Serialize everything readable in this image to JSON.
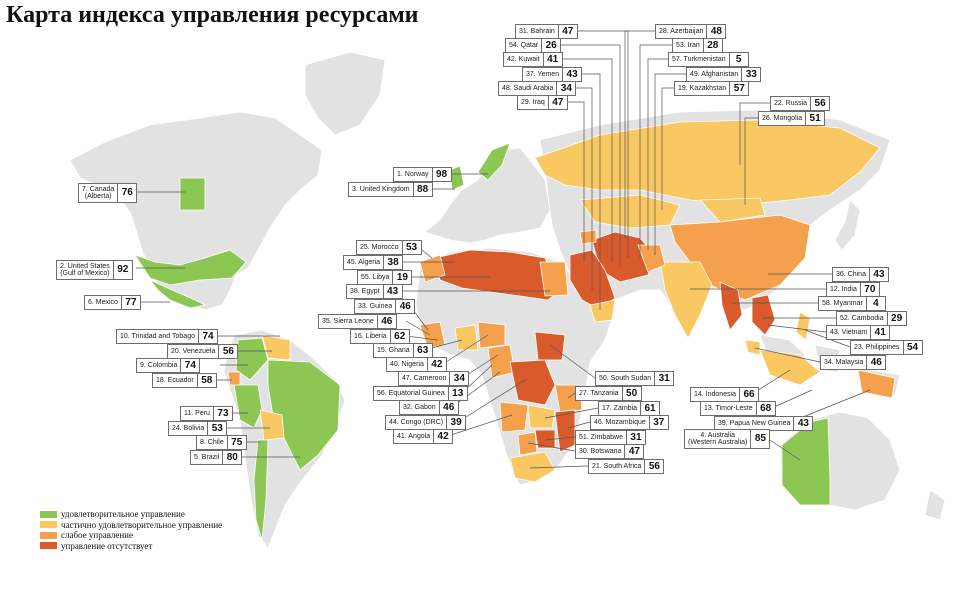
{
  "title": "Карта индекса управления ресурсами",
  "colors": {
    "ocean": "#ffffff",
    "land": "#e2e2e2",
    "border": "#ffffff",
    "satisfactory": "#8cc653",
    "partial": "#f9c862",
    "weak": "#f4a04c",
    "failing": "#d95b2b",
    "leader": "#555555"
  },
  "legend": [
    {
      "label": "удовлетворительное управление",
      "color_key": "satisfactory"
    },
    {
      "label": "частично удовлетворительное управление",
      "color_key": "partial"
    },
    {
      "label": "слабое управление",
      "color_key": "weak"
    },
    {
      "label": "управление отсутствует",
      "color_key": "failing"
    }
  ],
  "countries": [
    {
      "rank": "31.",
      "name": "Bahrain",
      "score": "47"
    },
    {
      "rank": "54.",
      "name": "Qatar",
      "score": "26"
    },
    {
      "rank": "42.",
      "name": "Kuwait",
      "score": "41"
    },
    {
      "rank": "37.",
      "name": "Yemen",
      "score": "43"
    },
    {
      "rank": "48.",
      "name": "Saudi Arabia",
      "score": "34"
    },
    {
      "rank": "29.",
      "name": "Iraq",
      "score": "47"
    },
    {
      "rank": "28.",
      "name": "Azerbaijan",
      "score": "48"
    },
    {
      "rank": "53.",
      "name": "Iran",
      "score": "28"
    },
    {
      "rank": "57.",
      "name": "Turkmenistan",
      "score": "5"
    },
    {
      "rank": "49.",
      "name": "Afghanistan",
      "score": "33"
    },
    {
      "rank": "19.",
      "name": "Kazakhstan",
      "score": "57"
    },
    {
      "rank": "22.",
      "name": "Russia",
      "score": "56"
    },
    {
      "rank": "26.",
      "name": "Mongolia",
      "score": "51"
    },
    {
      "rank": "1.",
      "name": "Norway",
      "score": "98"
    },
    {
      "rank": "3.",
      "name": "United Kingdom",
      "score": "88"
    },
    {
      "rank": "7.",
      "name": "Canada",
      "sub": "(Alberta)",
      "score": "76"
    },
    {
      "rank": "2.",
      "name": "United States",
      "sub": "(Gulf of Mexico)",
      "score": "92"
    },
    {
      "rank": "6.",
      "name": "Mexico",
      "score": "77"
    },
    {
      "rank": "10.",
      "name": "Trinidad and Tobago",
      "score": "74"
    },
    {
      "rank": "20.",
      "name": "Venezuela",
      "score": "56"
    },
    {
      "rank": "9.",
      "name": "Colombia",
      "score": "74"
    },
    {
      "rank": "18.",
      "name": "Ecuador",
      "score": "58"
    },
    {
      "rank": "11.",
      "name": "Peru",
      "score": "73"
    },
    {
      "rank": "24.",
      "name": "Bolivia",
      "score": "53"
    },
    {
      "rank": "8.",
      "name": "Chile",
      "score": "75"
    },
    {
      "rank": "5.",
      "name": "Brazil",
      "score": "80"
    },
    {
      "rank": "25.",
      "name": "Morocco",
      "score": "53"
    },
    {
      "rank": "45.",
      "name": "Algeria",
      "score": "38"
    },
    {
      "rank": "55.",
      "name": "Libya",
      "score": "19"
    },
    {
      "rank": "38.",
      "name": "Egypt",
      "score": "43"
    },
    {
      "rank": "33.",
      "name": "Guinea",
      "score": "46"
    },
    {
      "rank": "35.",
      "name": "Sierra Leone",
      "score": "46"
    },
    {
      "rank": "16.",
      "name": "Liberia",
      "score": "62"
    },
    {
      "rank": "15.",
      "name": "Ghana",
      "score": "63"
    },
    {
      "rank": "40.",
      "name": "Nigeria",
      "score": "42"
    },
    {
      "rank": "47.",
      "name": "Cameroon",
      "score": "34"
    },
    {
      "rank": "56.",
      "name": "Equatorial Guinea",
      "score": "13"
    },
    {
      "rank": "32.",
      "name": "Gabon",
      "score": "46"
    },
    {
      "rank": "44.",
      "name": "Congo (DRC)",
      "score": "39"
    },
    {
      "rank": "41.",
      "name": "Angola",
      "score": "42"
    },
    {
      "rank": "50.",
      "name": "South Sudan",
      "score": "31"
    },
    {
      "rank": "27.",
      "name": "Tanzania",
      "score": "50"
    },
    {
      "rank": "17.",
      "name": "Zambia",
      "score": "61"
    },
    {
      "rank": "46.",
      "name": "Mozambique",
      "score": "37"
    },
    {
      "rank": "51.",
      "name": "Zimbabwe",
      "score": "31"
    },
    {
      "rank": "30.",
      "name": "Botswana",
      "score": "47"
    },
    {
      "rank": "21.",
      "name": "South Africa",
      "score": "56"
    },
    {
      "rank": "36.",
      "name": "China",
      "score": "43"
    },
    {
      "rank": "12.",
      "name": "India",
      "score": "70"
    },
    {
      "rank": "58.",
      "name": "Myanmar",
      "score": "4"
    },
    {
      "rank": "52.",
      "name": "Cambodia",
      "score": "29"
    },
    {
      "rank": "43.",
      "name": "Vietnam",
      "score": "41"
    },
    {
      "rank": "23.",
      "name": "Philippines",
      "score": "54"
    },
    {
      "rank": "34.",
      "name": "Malaysia",
      "score": "46"
    },
    {
      "rank": "14.",
      "name": "Indonesia",
      "score": "66"
    },
    {
      "rank": "13.",
      "name": "Timor-Leste",
      "score": "68"
    },
    {
      "rank": "39.",
      "name": "Papua New Guinea",
      "score": "43"
    },
    {
      "rank": "4.",
      "name": "Australia",
      "sub": "(Western Australia)",
      "score": "85"
    }
  ]
}
